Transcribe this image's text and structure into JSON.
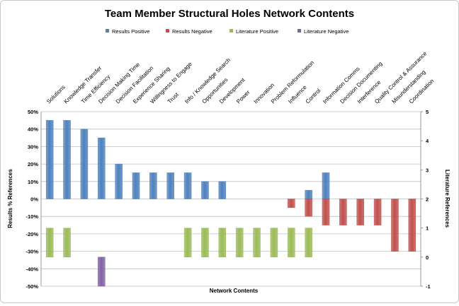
{
  "chart_data": {
    "type": "bar",
    "title": "Team Member Structural Holes Network Contents",
    "xlabel": "Network Contents",
    "ylabel": "Results % References",
    "y2label": "Literature References",
    "ylim": [
      -0.5,
      0.5
    ],
    "y_ticks": [
      "50%",
      "40%",
      "30%",
      "20%",
      "10%",
      "0%",
      "-10%",
      "-20%",
      "-30%",
      "-40%",
      "-50%"
    ],
    "y2lim": [
      -1,
      5
    ],
    "y2_ticks": [
      "5",
      "4",
      "3",
      "2",
      "1",
      "0",
      "-1"
    ],
    "legend_position": "top",
    "grid": "horizontal",
    "categories": [
      "Solutions",
      "Knowledge Transfer",
      "Time Efficiency",
      "Decision Making Time",
      "Decision Facilitation",
      "Experience Sharing",
      "Willingness to Engage",
      "Trust",
      "Info / Knowledge Search",
      "Opportunities",
      "Development",
      "Power",
      "Innovation",
      "Problem Reformulation",
      "Influence",
      "Control",
      "Information Comms",
      "Decision Documenting",
      "Interference",
      "Quality Control & Assurance",
      "Misunderstanding",
      "Coordination"
    ],
    "series": [
      {
        "name": "Results Positive",
        "axis": "left",
        "color": "#4f81bd",
        "values": [
          0.45,
          0.45,
          0.4,
          0.35,
          0.2,
          0.15,
          0.15,
          0.15,
          0.15,
          0.1,
          0.1,
          0,
          0,
          0,
          0,
          0.05,
          0.15,
          0,
          0,
          0,
          0,
          0
        ]
      },
      {
        "name": "Results Negative",
        "axis": "left",
        "color": "#c0504d",
        "values": [
          0,
          0,
          0,
          0,
          0,
          0,
          0,
          0,
          0,
          0,
          0,
          0,
          0,
          0,
          -0.05,
          -0.1,
          -0.15,
          -0.15,
          -0.15,
          -0.15,
          -0.3,
          -0.3
        ]
      },
      {
        "name": "Literature Positive",
        "axis": "right",
        "color": "#9bbb59",
        "values": [
          1,
          1,
          0,
          0,
          0,
          0,
          0,
          0,
          1,
          1,
          1,
          1,
          1,
          1,
          1,
          1,
          0,
          0,
          0,
          0,
          0,
          0
        ]
      },
      {
        "name": "Literature Negative",
        "axis": "right",
        "color": "#8064a2",
        "values": [
          0,
          0,
          0,
          -1,
          0,
          0,
          0,
          0,
          0,
          0,
          0,
          0,
          0,
          0,
          0,
          0,
          0,
          0,
          0,
          0,
          0,
          0
        ]
      }
    ]
  }
}
